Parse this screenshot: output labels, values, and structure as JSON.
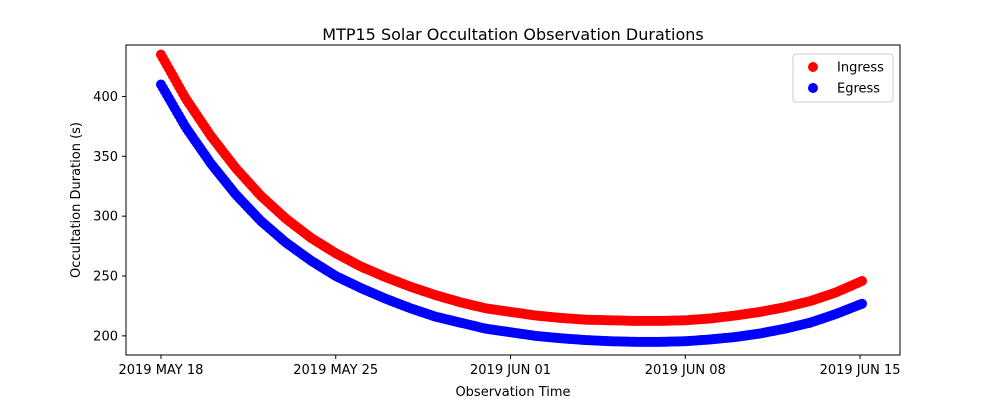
{
  "chart_data": {
    "type": "scatter",
    "title": "MTP15 Solar Occultation Observation Durations",
    "xlabel": "Observation Time",
    "ylabel": "Occultation Duration (s)",
    "x_unit": "days since 2019 MAY 18",
    "xlim": [
      -1.4,
      29.6
    ],
    "ylim": [
      184,
      443
    ],
    "x_ticks": [
      {
        "value": 0,
        "label": "2019 MAY 18"
      },
      {
        "value": 7,
        "label": "2019 MAY 25"
      },
      {
        "value": 14,
        "label": "2019 JUN 01"
      },
      {
        "value": 21,
        "label": "2019 JUN 08"
      },
      {
        "value": 28,
        "label": "2019 JUN 15"
      }
    ],
    "y_ticks": [
      {
        "value": 200,
        "label": "200"
      },
      {
        "value": 250,
        "label": "250"
      },
      {
        "value": 300,
        "label": "300"
      },
      {
        "value": 350,
        "label": "350"
      },
      {
        "value": 400,
        "label": "400"
      }
    ],
    "grid": false,
    "legend_position": "top-right",
    "x": [
      0,
      1,
      2,
      3,
      4,
      5,
      6,
      7,
      8,
      9,
      10,
      11,
      12,
      13,
      14,
      15,
      16,
      17,
      18,
      19,
      20,
      21,
      22,
      23,
      24,
      25,
      26,
      27,
      28.1
    ],
    "series": [
      {
        "name": "Ingress",
        "color": "#ff0000",
        "values": [
          435,
          398,
          367,
          340,
          317,
          298,
          282,
          269,
          258,
          249,
          241,
          234,
          228,
          223,
          220,
          217,
          215,
          213.5,
          213,
          212.5,
          212.5,
          213,
          214.5,
          217,
          220,
          224,
          229,
          236,
          246
        ]
      },
      {
        "name": "Egress",
        "color": "#0000ff",
        "values": [
          410,
          374,
          344,
          318,
          296,
          278,
          263,
          250,
          240,
          231,
          223,
          216,
          211,
          206,
          203,
          200,
          198,
          196.5,
          195.5,
          195,
          195,
          195.5,
          197,
          199,
          202,
          206,
          211,
          218,
          227
        ]
      }
    ]
  }
}
